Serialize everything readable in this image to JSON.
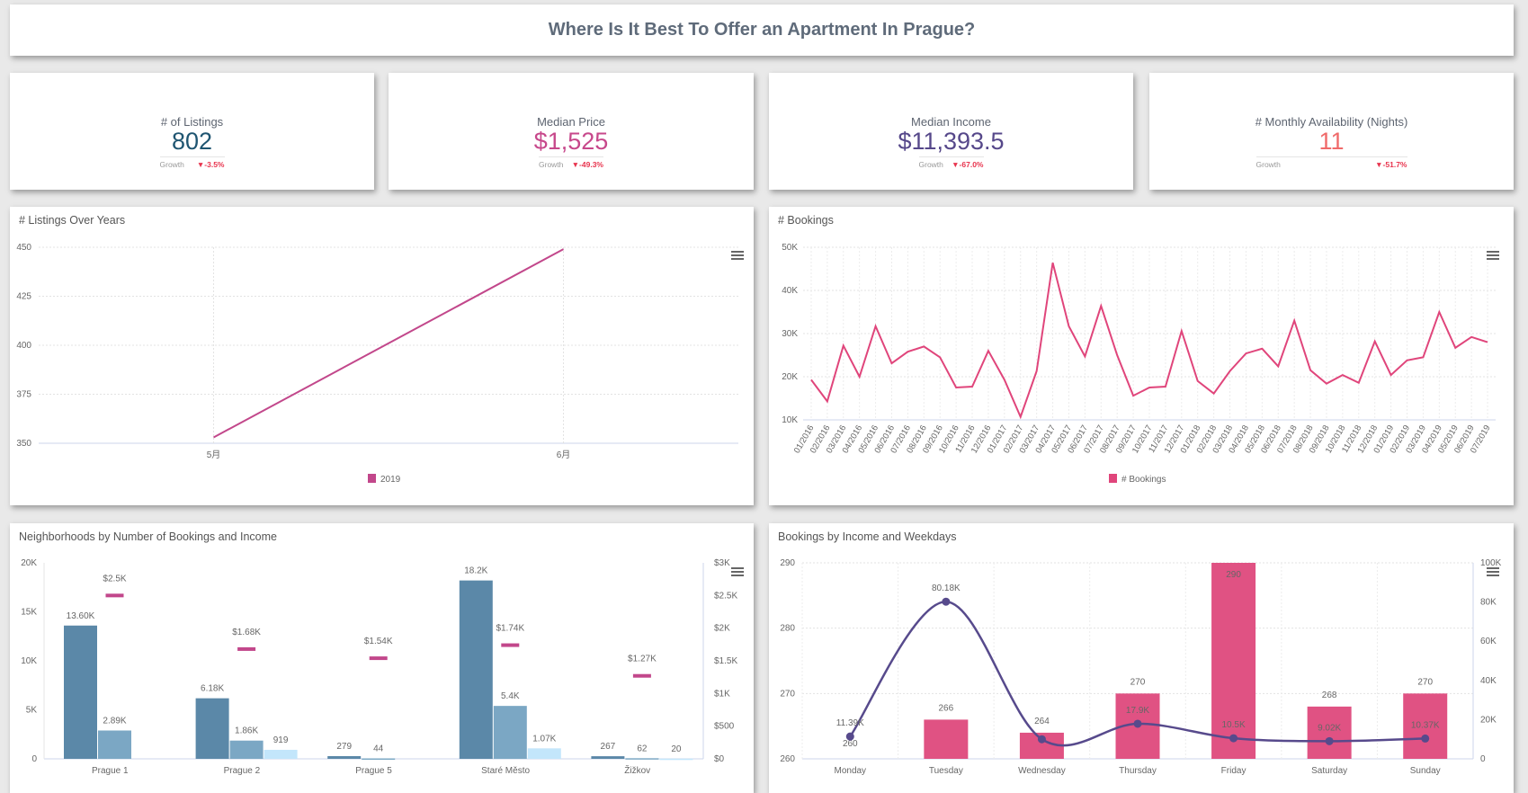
{
  "header": {
    "title": "Where Is It Best To Offer an Apartment In Prague?"
  },
  "kpis": [
    {
      "label": "# of Listings",
      "value": "802",
      "growth_label": "Growth",
      "growth": "▼-3.5%",
      "color": "#1f5571"
    },
    {
      "label": "Median Price",
      "value": "$1,525",
      "growth_label": "Growth",
      "growth": "▼-49.3%",
      "color": "#c7488b"
    },
    {
      "label": "Median Income",
      "value": "$11,393.5",
      "growth_label": "Growth",
      "growth": "▼-67.0%",
      "color": "#56488a"
    },
    {
      "label": "# Monthly Availability (Nights)",
      "value": "11",
      "growth_label": "Growth",
      "growth": "▼-51.7%",
      "color": "#f06a6a"
    }
  ],
  "icons": {
    "chart_menu": "hamburger-menu-icon"
  },
  "chart_data": [
    {
      "id": "listings",
      "title": "# Listings Over Years",
      "type": "line",
      "categories": [
        "5月",
        "6月"
      ],
      "series": [
        {
          "name": "2019",
          "values": [
            353,
            449
          ],
          "color": "#c2478b"
        }
      ],
      "ylim": [
        350,
        450
      ],
      "yticks": [
        "350",
        "375",
        "400",
        "425",
        "450"
      ],
      "ytick_values": [
        350,
        375,
        400,
        425,
        450
      ],
      "grid": true,
      "legend": "bottom"
    },
    {
      "id": "bookings",
      "title": "# Bookings",
      "type": "line",
      "categories": [
        "01/2016",
        "02/2016",
        "03/2016",
        "04/2016",
        "05/2016",
        "06/2016",
        "07/2016",
        "08/2016",
        "09/2016",
        "10/2016",
        "11/2016",
        "12/2016",
        "01/2017",
        "02/2017",
        "03/2017",
        "04/2017",
        "05/2017",
        "06/2017",
        "07/2017",
        "08/2017",
        "09/2017",
        "10/2017",
        "11/2017",
        "12/2017",
        "01/2018",
        "02/2018",
        "03/2018",
        "04/2018",
        "05/2018",
        "06/2018",
        "07/2018",
        "08/2018",
        "09/2018",
        "10/2018",
        "11/2018",
        "12/2018",
        "01/2019",
        "02/2019",
        "03/2019",
        "04/2019",
        "05/2019",
        "06/2019",
        "07/2019"
      ],
      "series": [
        {
          "name": "# Bookings",
          "color": "#e0457b",
          "values": [
            19300,
            14300,
            27200,
            20000,
            31700,
            23100,
            25800,
            27000,
            24500,
            17500,
            17700,
            26000,
            19300,
            10700,
            21300,
            46400,
            31700,
            24700,
            36400,
            25000,
            15600,
            17500,
            17700,
            30600,
            19000,
            16100,
            21300,
            25400,
            26500,
            22400,
            33000,
            21500,
            18400,
            20400,
            18600,
            28200,
            20400,
            23800,
            24500,
            35000,
            26700,
            29200,
            28000
          ]
        }
      ],
      "ylim": [
        10000,
        50000
      ],
      "yticks": [
        "10K",
        "20K",
        "30K",
        "40K",
        "50K"
      ],
      "ytick_values": [
        10000,
        20000,
        30000,
        40000,
        50000
      ],
      "grid": true,
      "legend": "bottom"
    },
    {
      "id": "neighborhoods",
      "title": "Neighborhoods by Number of Bookings and Income",
      "type": "bar",
      "categories": [
        "Prague 1",
        "Prague 2",
        "Prague 5",
        "Staré Město",
        "Žižkov"
      ],
      "series": [
        {
          "values": [
            13600,
            6180,
            279,
            18200,
            267
          ],
          "labels": [
            "13.60K",
            "6.18K",
            "279",
            "18.2K",
            "267"
          ],
          "color": "#5b88a8"
        },
        {
          "values": [
            2890,
            1860,
            44,
            5400,
            62
          ],
          "labels": [
            "2.89K",
            "1.86K",
            "44",
            "5.4K",
            "62"
          ],
          "color": "#7ba7c4"
        },
        {
          "values": [
            null,
            919,
            null,
            1070,
            20
          ],
          "labels": [
            "",
            "919",
            "",
            "1.07K",
            "20"
          ],
          "color": "#c3e6fb"
        }
      ],
      "income_series": {
        "values": [
          2500,
          1680,
          1540,
          1740,
          1270
        ],
        "labels": [
          "$2.5K",
          "$1.68K",
          "$1.54K",
          "$1.74K",
          "$1.27K"
        ],
        "color": "#c2478b"
      },
      "ylim": [
        0,
        20000
      ],
      "yticks": [
        "0",
        "5K",
        "10K",
        "15K",
        "20K"
      ],
      "ytick_values": [
        0,
        5000,
        10000,
        15000,
        20000
      ],
      "y2lim": [
        0,
        3000
      ],
      "y2ticks": [
        "$0",
        "$500",
        "$1K",
        "$1.5K",
        "$2K",
        "$2.5K",
        "$3K"
      ],
      "y2tick_values": [
        0,
        500,
        1000,
        1500,
        2000,
        2500,
        3000
      ]
    },
    {
      "id": "weekdays",
      "title": "Bookings by Income and Weekdays",
      "type": "bar",
      "categories": [
        "Monday",
        "Tuesday",
        "Wednesday",
        "Thursday",
        "Friday",
        "Saturday",
        "Sunday"
      ],
      "series": [
        {
          "values": [
            260,
            266,
            264,
            270,
            290,
            268,
            270
          ],
          "labels": [
            "260",
            "266",
            "264",
            "270",
            "290",
            "268",
            "270"
          ],
          "color": "#e05283"
        }
      ],
      "line_series": {
        "values": [
          11390,
          80180,
          10000,
          17900,
          10500,
          9020,
          10370
        ],
        "labels": [
          "11.39K",
          "80.18K",
          "",
          "17.9K",
          "10.5K",
          "9.02K",
          "10.37K"
        ],
        "color": "#574a8c"
      },
      "ylim": [
        260,
        290
      ],
      "yticks": [
        "260",
        "270",
        "280",
        "290"
      ],
      "ytick_values": [
        260,
        270,
        280,
        290
      ],
      "y2lim": [
        0,
        100000
      ],
      "y2ticks": [
        "0",
        "20K",
        "40K",
        "60K",
        "80K",
        "100K"
      ],
      "y2tick_values": [
        0,
        20000,
        40000,
        60000,
        80000,
        100000
      ],
      "grid": true
    }
  ]
}
